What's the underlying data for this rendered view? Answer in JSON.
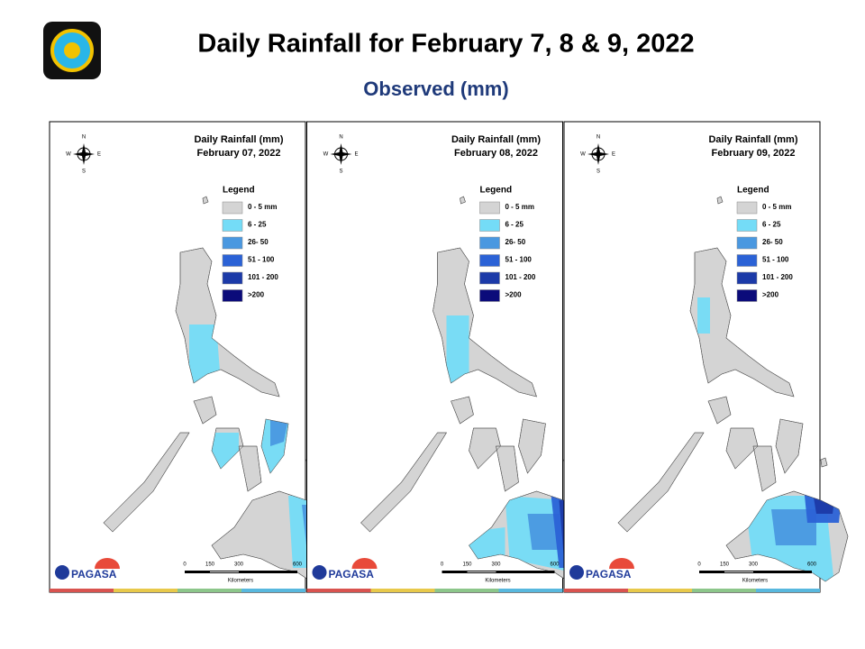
{
  "header": {
    "title": "Daily Rainfall for February 7, 8 & 9, 2022",
    "subtitle": "Observed (mm)"
  },
  "panels": [
    {
      "title": "Daily Rainfall (mm)",
      "date": "February 07, 2022",
      "legend_title": "Legend",
      "legend": [
        {
          "label": "0 - 5 mm",
          "color": "#d4d4d4"
        },
        {
          "label": "6 - 25",
          "color": "#74dcf7"
        },
        {
          "label": "26- 50",
          "color": "#4a98e0"
        },
        {
          "label": "51 - 100",
          "color": "#2b62d6"
        },
        {
          "label": "101 - 200",
          "color": "#1c3aa8"
        },
        {
          "label": ">200",
          "color": "#0b0b7a"
        }
      ],
      "scale": [
        "0",
        "150",
        "300",
        "600"
      ],
      "scale_unit": "Kilometers",
      "compass": [
        "N",
        "E",
        "S",
        "W"
      ],
      "agency": "PAGASA"
    },
    {
      "title": "Daily Rainfall (mm)",
      "date": "February 08, 2022",
      "legend_title": "Legend",
      "legend": [
        {
          "label": "0 - 5 mm",
          "color": "#d4d4d4"
        },
        {
          "label": "6 - 25",
          "color": "#74dcf7"
        },
        {
          "label": "26- 50",
          "color": "#4a98e0"
        },
        {
          "label": "51 - 100",
          "color": "#2b62d6"
        },
        {
          "label": "101 - 200",
          "color": "#1c3aa8"
        },
        {
          "label": ">200",
          "color": "#0b0b7a"
        }
      ],
      "scale": [
        "0",
        "150",
        "300",
        "600"
      ],
      "scale_unit": "Kilometers",
      "compass": [
        "N",
        "E",
        "S",
        "W"
      ],
      "agency": "PAGASA"
    },
    {
      "title": "Daily Rainfall (mm)",
      "date": "February 09, 2022",
      "legend_title": "Legend",
      "legend": [
        {
          "label": "0 - 5 mm",
          "color": "#d4d4d4"
        },
        {
          "label": "6 - 25",
          "color": "#74dcf7"
        },
        {
          "label": "26- 50",
          "color": "#4a98e0"
        },
        {
          "label": "51 - 100",
          "color": "#2b62d6"
        },
        {
          "label": "101 - 200",
          "color": "#1c3aa8"
        },
        {
          "label": ">200",
          "color": "#0b0b7a"
        }
      ],
      "scale": [
        "0",
        "150",
        "300",
        "600"
      ],
      "scale_unit": "Kilometers",
      "compass": [
        "N",
        "E",
        "S",
        "W"
      ],
      "agency": "PAGASA"
    }
  ]
}
